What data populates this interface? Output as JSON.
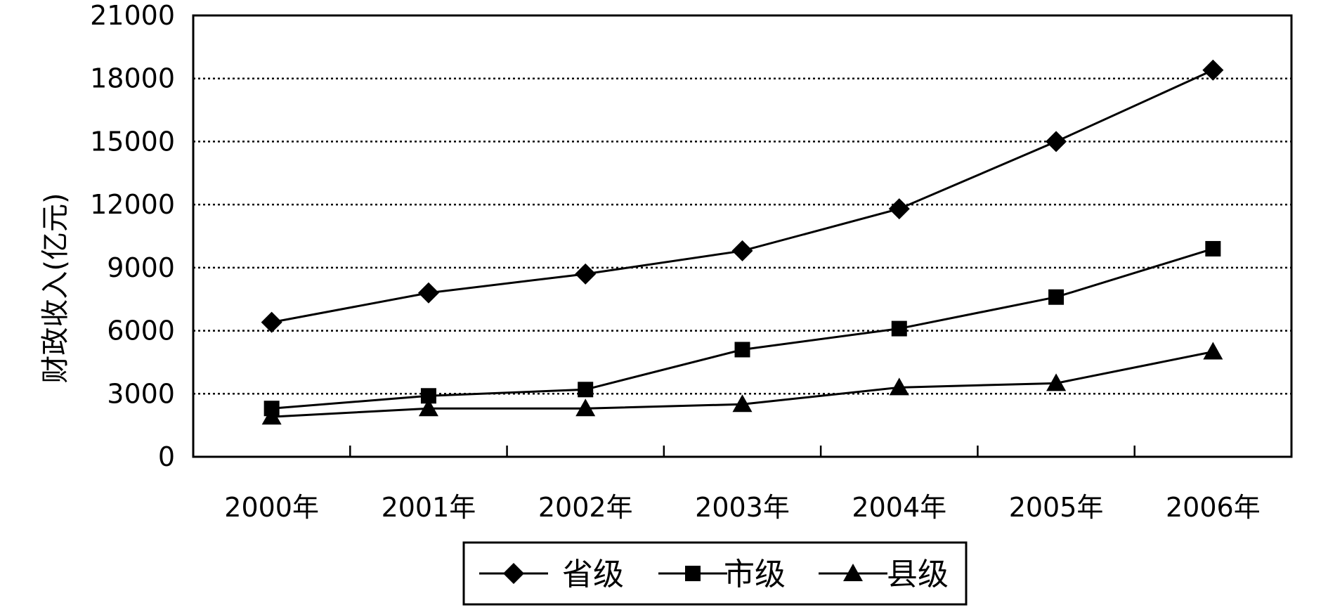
{
  "chart_data": {
    "type": "line",
    "title": "",
    "xlabel": "",
    "ylabel": "财政收入(亿元)",
    "categories": [
      "2000年",
      "2001年",
      "2002年",
      "2003年",
      "2004年",
      "2005年",
      "2006年"
    ],
    "ylim": [
      0,
      21000
    ],
    "yticks": [
      0,
      3000,
      6000,
      9000,
      12000,
      15000,
      18000,
      21000
    ],
    "grid": "horizontal dotted",
    "legend_position": "bottom",
    "series": [
      {
        "name": "省级",
        "marker": "diamond",
        "values": [
          6400,
          7800,
          8700,
          9800,
          11800,
          15000,
          18400
        ]
      },
      {
        "name": "市级",
        "marker": "square",
        "values": [
          2300,
          2900,
          3200,
          5100,
          6100,
          7600,
          9900
        ]
      },
      {
        "name": "县级",
        "marker": "triangle",
        "values": [
          1900,
          2300,
          2300,
          2500,
          3300,
          3500,
          5000
        ]
      }
    ]
  }
}
